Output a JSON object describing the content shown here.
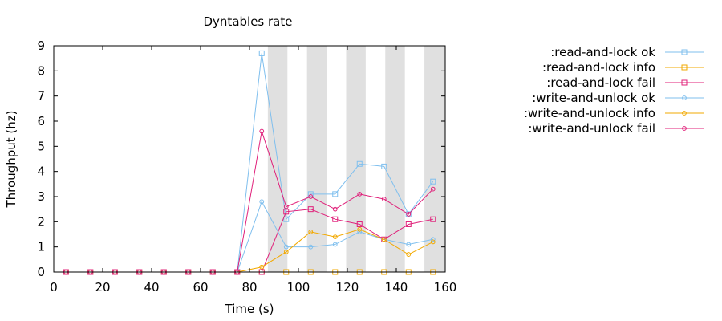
{
  "chart_data": {
    "type": "line",
    "title": "Dyntables rate",
    "xlabel": "Time (s)",
    "ylabel": "Throughput (hz)",
    "xlim": [
      0,
      160
    ],
    "ylim": [
      0,
      9
    ],
    "x_ticks": [
      "0",
      "20",
      "40",
      "60",
      "80",
      "100",
      "120",
      "140",
      "160"
    ],
    "y_ticks": [
      "0",
      "1",
      "2",
      "3",
      "4",
      "5",
      "6",
      "7",
      "8",
      "9"
    ],
    "grid": false,
    "legend_position": "outside-right",
    "shaded_intervals": [
      [
        87.5,
        95.5
      ],
      [
        103.5,
        111.5
      ],
      [
        119.5,
        127.5
      ],
      [
        135.5,
        143.5
      ],
      [
        151.5,
        160
      ]
    ],
    "shade_color": "#e0e0e0",
    "x": [
      5,
      15,
      25,
      35,
      45,
      55,
      65,
      75,
      85,
      95,
      105,
      115,
      125,
      135,
      145,
      155
    ],
    "series": [
      {
        "name": ":read-and-lock ok",
        "color": "#7fbfee",
        "marker": "square",
        "values": [
          0,
          0,
          0,
          0,
          0,
          0,
          0,
          0,
          8.7,
          2.1,
          3.1,
          3.1,
          4.3,
          4.2,
          2.3,
          3.6
        ]
      },
      {
        "name": ":read-and-lock info",
        "color": "#f2a900",
        "marker": "square",
        "values": [
          0,
          0,
          0,
          0,
          0,
          0,
          0,
          0,
          0,
          0,
          0,
          0,
          0,
          0,
          0,
          0
        ]
      },
      {
        "name": ":read-and-lock fail",
        "color": "#e0207a",
        "marker": "square",
        "values": [
          0,
          0,
          0,
          0,
          0,
          0,
          0,
          0,
          0,
          2.4,
          2.5,
          2.1,
          1.9,
          1.3,
          1.9,
          2.1
        ]
      },
      {
        "name": ":write-and-unlock ok",
        "color": "#7fbfee",
        "marker": "circle",
        "values": [
          0,
          0,
          0,
          0,
          0,
          0,
          0,
          0,
          2.8,
          1.0,
          1.0,
          1.1,
          1.6,
          1.3,
          1.1,
          1.3
        ]
      },
      {
        "name": ":write-and-unlock info",
        "color": "#f2a900",
        "marker": "circle",
        "values": [
          0,
          0,
          0,
          0,
          0,
          0,
          0,
          0,
          0.2,
          0.8,
          1.6,
          1.4,
          1.7,
          1.3,
          0.7,
          1.2
        ]
      },
      {
        "name": ":write-and-unlock fail",
        "color": "#e0207a",
        "marker": "circle",
        "values": [
          0,
          0,
          0,
          0,
          0,
          0,
          0,
          0,
          5.6,
          2.6,
          3.0,
          2.5,
          3.1,
          2.9,
          2.3,
          3.3
        ]
      }
    ]
  }
}
